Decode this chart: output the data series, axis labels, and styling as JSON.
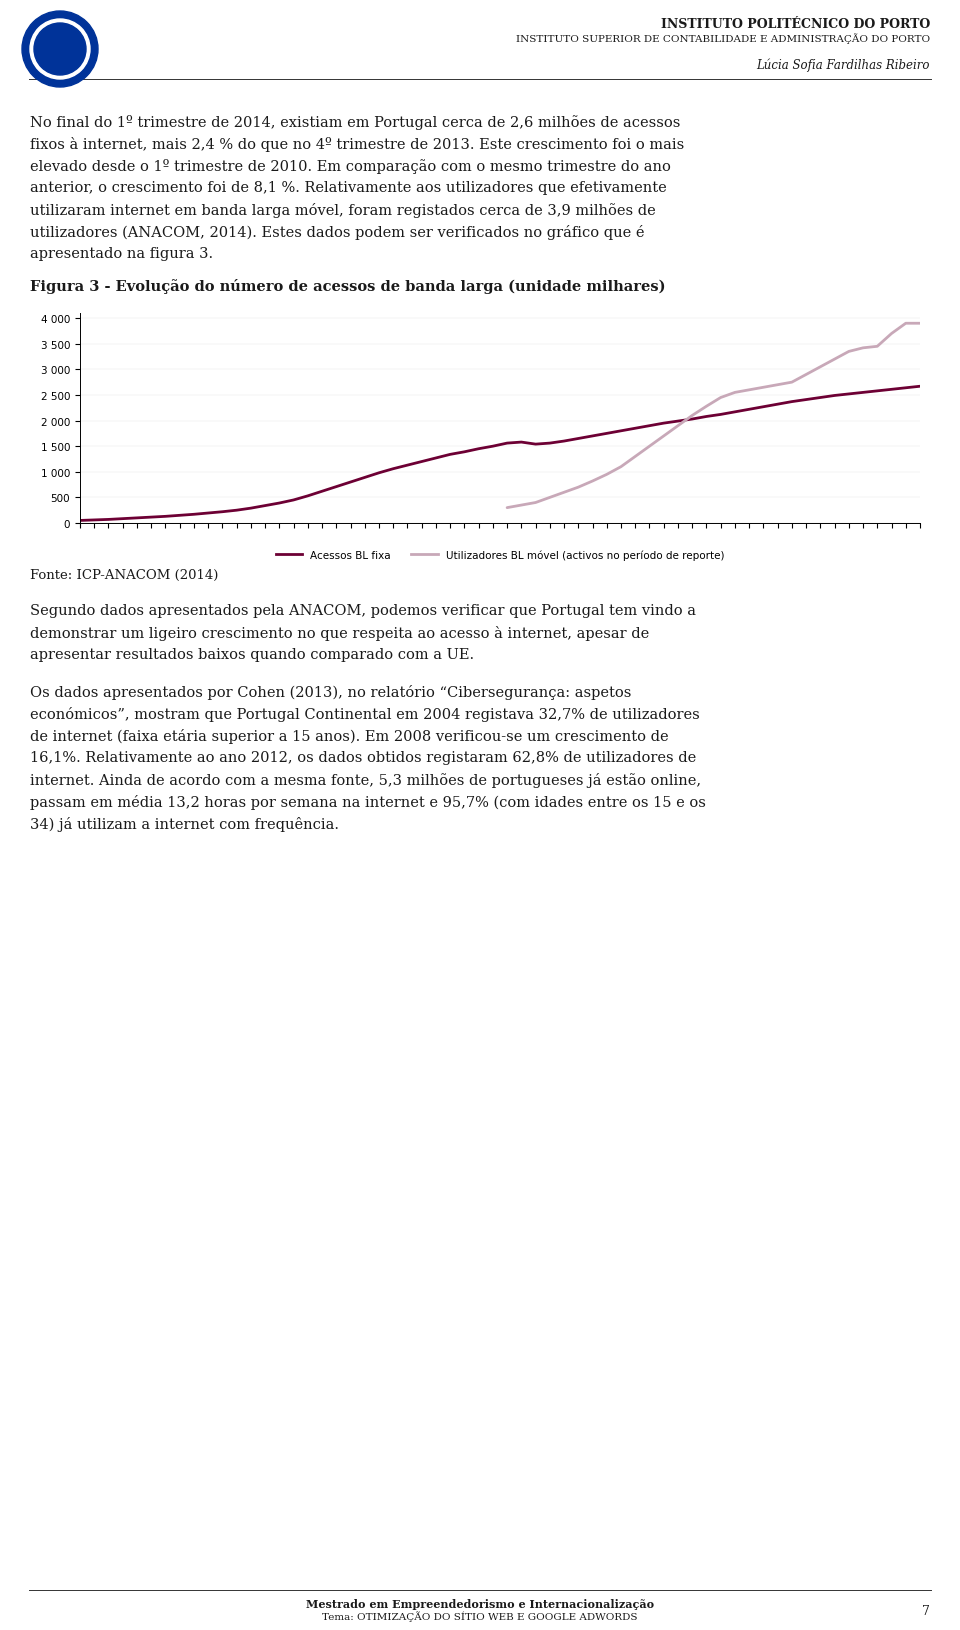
{
  "page_background": "#ffffff",
  "header_line1": "INSTITUTO POLITÉCNICO DO PORTO",
  "header_line2": "INSTITUTO SUPERIOR DE CONTABILIDADE E ADMINISTRAÇÃO DO PORTO",
  "header_line3": "Lúcia Sofia Fardilhas Ribeiro",
  "body_text_1": "No final do 1º trimestre de 2014, existiam em Portugal cerca de 2,6 milhões de acessos\nfixos à internet, mais 2,4 % do que no 4º trimestre de 2013. Este crescimento foi o mais\nelevado desde o 1º trimestre de 2010. Em comparação com o mesmo trimestre do ano\nanterior, o crescimento foi de 8,1 %. Relativamente aos utilizadores que efetivamente\nutilizaram internet em banda larga móvel, foram registados cerca de 3,9 milhões de\nutilizadores (ANACOM, 2014). Estes dados podem ser verificados no gráfico que é\napresentado na figura 3.",
  "figure_caption": "Figura 3 - Evolução do número de acessos de banda larga (unidade milhares)",
  "chart_yticks": [
    0,
    500,
    1000,
    1500,
    2000,
    2500,
    3000,
    3500,
    4000
  ],
  "chart_ylabel": "",
  "legend_label1": "Acessos BL fixa",
  "legend_label2": "Utilizadores BL móvel (activos no período de reporte)",
  "line1_color": "#6d0034",
  "line2_color": "#c8a8b8",
  "source_text": "Fonte: ICP-ANACOM (2014)",
  "body_text_2": "Segundo dados apresentados pela ANACOM, podemos verificar que Portugal tem vindo a\ndemonstrar um ligeiro crescimento no que respeita ao acesso à internet, apesar de\napresentar resultados baixos quando comparado com a UE.",
  "body_text_3": "Os dados apresentados por Cohen (2013), no relatório “Cibersegurança: aspetos\neconómicos”, mostram que Portugal Continental em 2004 registava 32,7% de utilizadores\nde internet (faixa etária superior a 15 anos). Em 2008 verificou-se um crescimento de\n16,1%. Relativamente ao ano 2012, os dados obtidos registaram 62,8% de utilizadores de\ninternet. Ainda de acordo com a mesma fonte, 5,3 milhões de portugueses já estão online,\npassam em média 13,2 horas por semana na internet e 95,7% (com idades entre os 15 e os\n34) já utilizam a internet com frequência.",
  "footer_text1": "Mestrado em Empreendedorismo e Internacionalização",
  "footer_text2": "Tema: OTIMIZAÇÃO DO SÍTIO WEB E GOOGLE ADWORDS",
  "footer_page": "7",
  "line1_data": [
    50,
    60,
    70,
    85,
    100,
    115,
    130,
    150,
    170,
    195,
    220,
    250,
    290,
    340,
    390,
    450,
    530,
    620,
    710,
    800,
    890,
    980,
    1060,
    1130,
    1200,
    1270,
    1340,
    1390,
    1450,
    1500,
    1560,
    1580,
    1540,
    1560,
    1600,
    1650,
    1700,
    1750,
    1800,
    1850,
    1900,
    1950,
    1990,
    2030,
    2080,
    2120,
    2170,
    2220,
    2270,
    2320,
    2370,
    2410,
    2450,
    2490,
    2520,
    2550,
    2580,
    2610,
    2640,
    2670
  ],
  "line2_data": [
    null,
    null,
    null,
    null,
    null,
    null,
    null,
    null,
    null,
    null,
    null,
    null,
    null,
    null,
    null,
    null,
    null,
    null,
    null,
    null,
    null,
    null,
    null,
    null,
    null,
    null,
    null,
    null,
    null,
    null,
    300,
    350,
    400,
    500,
    600,
    700,
    820,
    950,
    1100,
    1300,
    1500,
    1700,
    1900,
    2100,
    2280,
    2450,
    2550,
    2600,
    2650,
    2700,
    2750,
    2900,
    3050,
    3200,
    3350,
    3420,
    3450,
    3700,
    3900,
    3900
  ]
}
